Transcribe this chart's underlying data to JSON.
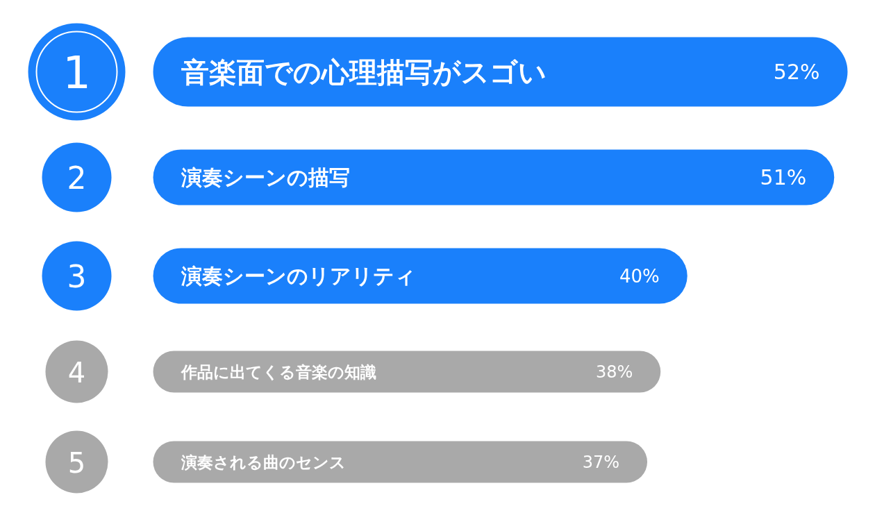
{
  "chart_data": {
    "type": "bar",
    "orientation": "horizontal",
    "categories": [
      "音楽面での心理描写がスゴい",
      "演奏シーンの描写",
      "演奏シーンのリアリティ",
      "作品に出てくる音楽の知識",
      "演奏される曲のセンス"
    ],
    "values": [
      52,
      51,
      40,
      38,
      37
    ],
    "value_labels": [
      "52%",
      "51%",
      "40%",
      "38%",
      "37%"
    ],
    "colors": [
      "#1a80fb",
      "#1a80fb",
      "#1a80fb",
      "#a9a9a9",
      "#a9a9a9"
    ],
    "annotations": [
      "1",
      "2",
      "3",
      "4",
      "5"
    ]
  }
}
